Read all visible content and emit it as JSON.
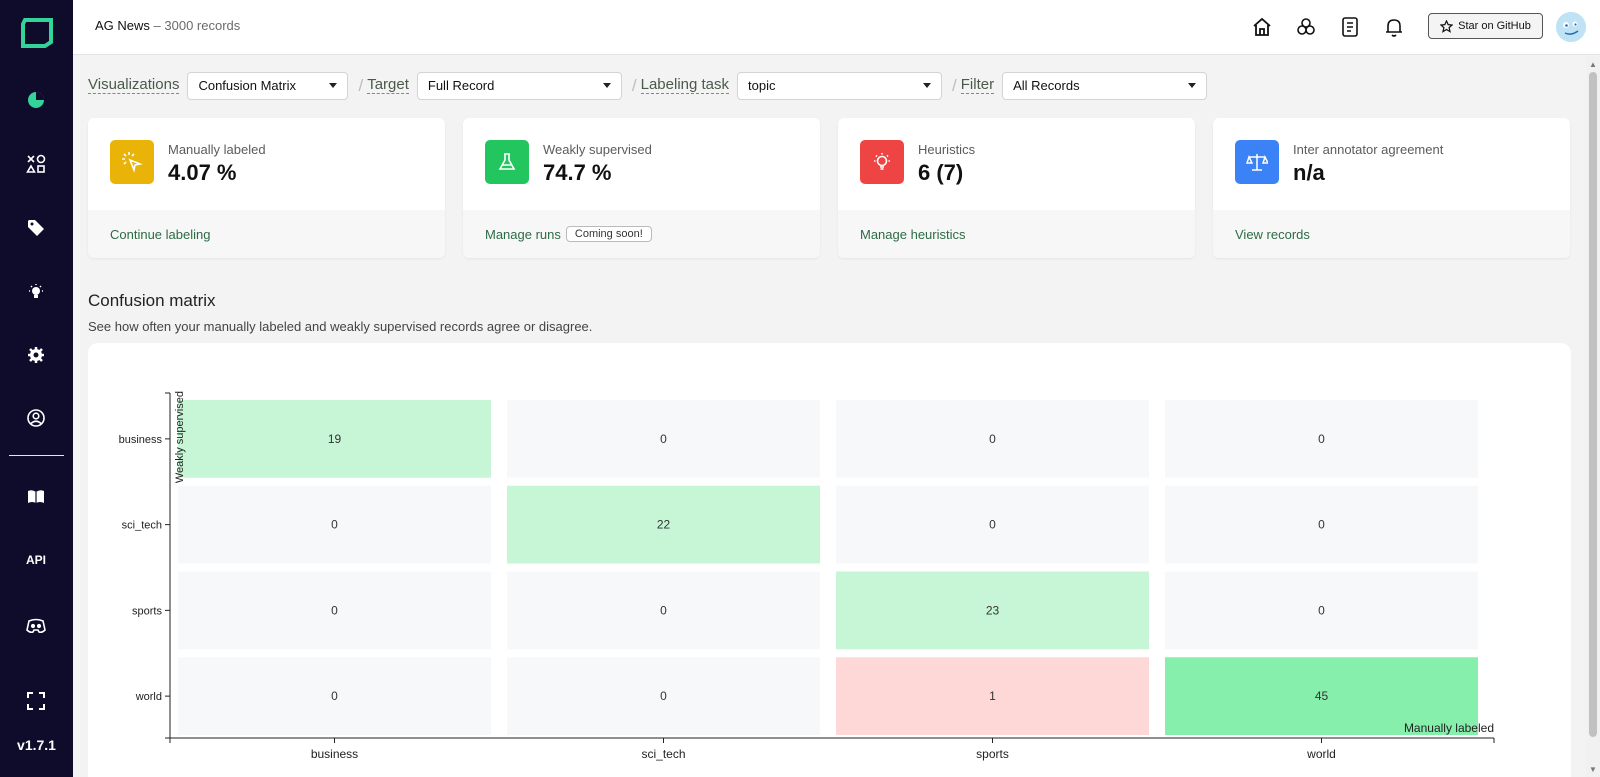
{
  "app": {
    "version": "v1.7.1",
    "api_label": "API"
  },
  "header": {
    "project_name": "AG News",
    "record_count": "– 3000 records",
    "github_button": "Star on GitHub"
  },
  "filters": {
    "visualizations": {
      "label": "Visualizations",
      "value": "Confusion Matrix"
    },
    "target": {
      "label": "Target",
      "value": "Full Record"
    },
    "labeling_task": {
      "label": "Labeling task",
      "value": "topic"
    },
    "filter": {
      "label": "Filter",
      "value": "All Records"
    }
  },
  "cards": [
    {
      "label": "Manually labeled",
      "value": "4.07 %",
      "link": "Continue labeling",
      "color": "#eab308"
    },
    {
      "label": "Weakly supervised",
      "value": "74.7 %",
      "link": "Manage runs",
      "badge": "Coming soon!",
      "color": "#22c55e"
    },
    {
      "label": "Heuristics",
      "value": "6 (7)",
      "link": "Manage heuristics",
      "color": "#ef4444"
    },
    {
      "label": "Inter annotator agreement",
      "value": "n/a",
      "link": "View records",
      "color": "#3b82f6"
    }
  ],
  "section": {
    "title": "Confusion matrix",
    "description": "See how often your manually labeled and weakly supervised records agree or disagree."
  },
  "chart_data": {
    "type": "heatmap",
    "title": "Confusion matrix",
    "xlabel": "Manually labeled",
    "ylabel": "Weakly supervised",
    "x_categories": [
      "business",
      "sci_tech",
      "sports",
      "world"
    ],
    "y_categories": [
      "business",
      "sci_tech",
      "sports",
      "world"
    ],
    "values": [
      [
        19,
        0,
        0,
        0
      ],
      [
        0,
        22,
        0,
        0
      ],
      [
        0,
        0,
        23,
        0
      ],
      [
        0,
        0,
        1,
        45
      ]
    ],
    "colors": {
      "agree_low": "#c6f6d5",
      "agree_high": "#86efac",
      "disagree": "#fed7d7",
      "empty": "#f7f8fa"
    }
  }
}
